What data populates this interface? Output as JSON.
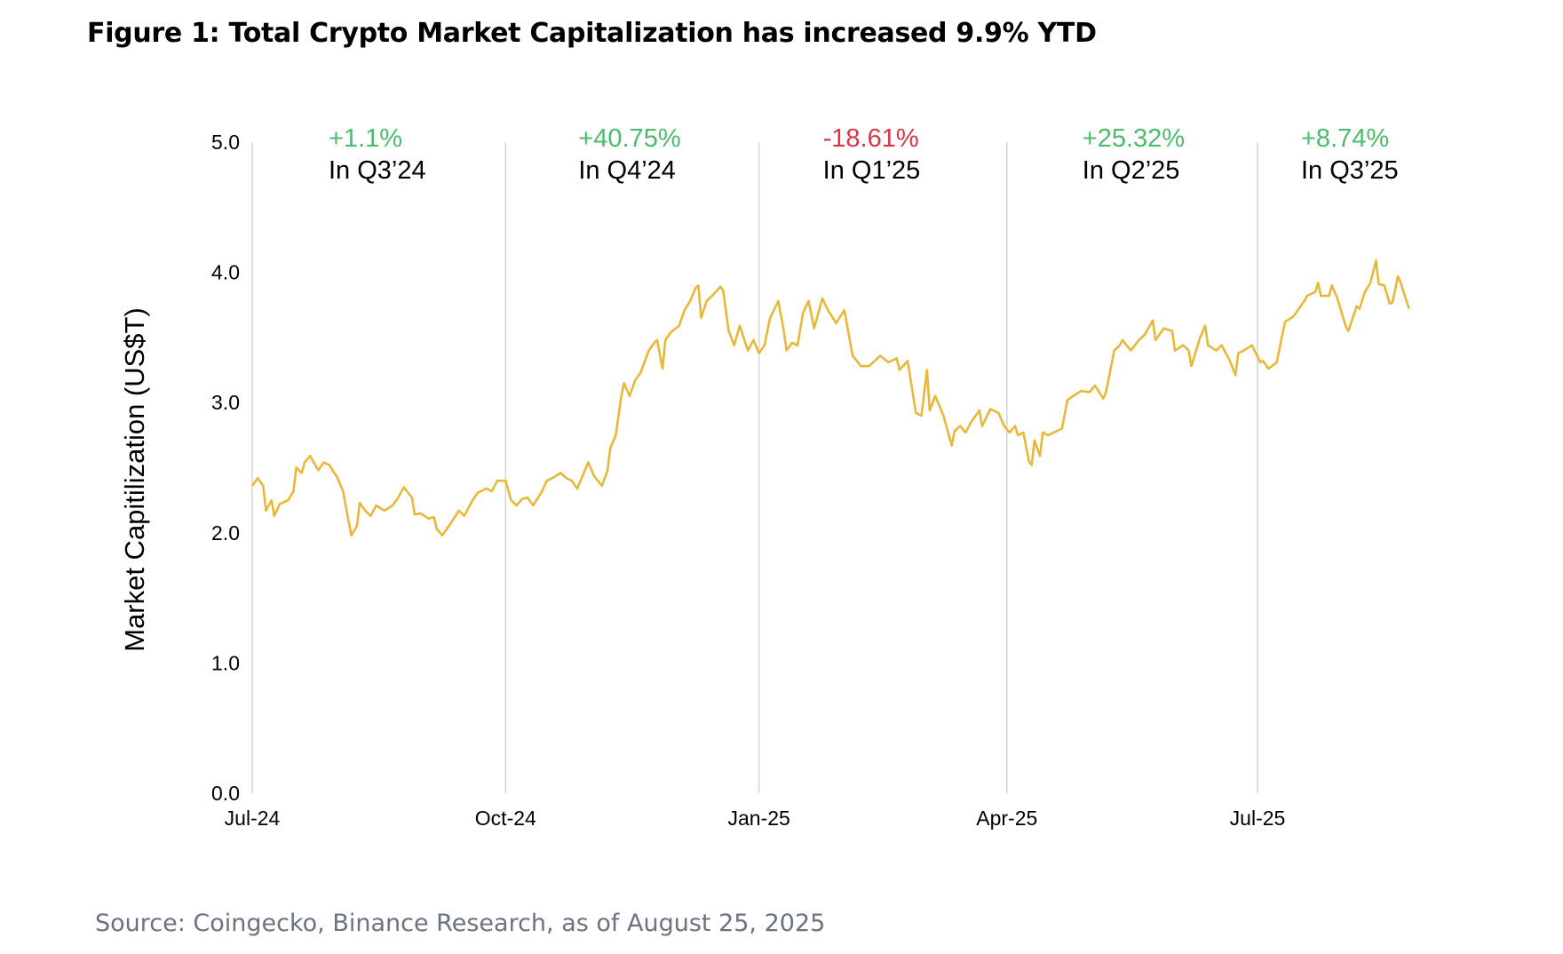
{
  "title": "Figure 1: Total Crypto Market Capitalization has increased 9.9% YTD",
  "source": "Source: Coingecko, Binance Research, as of August 25, 2025",
  "chart_data": {
    "type": "line",
    "title": "Figure 1: Total Crypto Market Capitalization has increased 9.9% YTD",
    "xlabel": "",
    "ylabel": "Market Capitilization (US$T)",
    "ylim": [
      0,
      5
    ],
    "xlim": [
      "2024-07-01",
      "2025-08-25"
    ],
    "yticks": [
      "0.0",
      "1.0",
      "2.0",
      "3.0",
      "4.0",
      "5.0"
    ],
    "xticks": [
      {
        "date": "2024-07-01",
        "label": "Jul-24"
      },
      {
        "date": "2024-10-01",
        "label": "Oct-24"
      },
      {
        "date": "2025-01-01",
        "label": "Jan-25"
      },
      {
        "date": "2025-04-01",
        "label": "Apr-25"
      },
      {
        "date": "2025-07-01",
        "label": "Jul-25"
      }
    ],
    "grid": "vertical lines at quarter starts",
    "line_color": "#e8b83a",
    "annotations": [
      {
        "change": "+1.1%",
        "period": "In Q3’24",
        "color": "#4cbb6c",
        "quarter_start": "2024-07-01"
      },
      {
        "change": "+40.75%",
        "period": "In Q4’24",
        "color": "#4cbb6c",
        "quarter_start": "2024-10-01"
      },
      {
        "change": "-18.61%",
        "period": "In Q1’25",
        "color": "#d9364a",
        "quarter_start": "2025-01-01"
      },
      {
        "change": "+25.32%",
        "period": "In Q2’25",
        "color": "#4cbb6c",
        "quarter_start": "2025-04-01"
      },
      {
        "change": "+8.74%",
        "period": "In Q3’25",
        "color": "#4cbb6c",
        "quarter_start": "2025-07-01"
      }
    ],
    "series": [
      {
        "points": [
          [
            "2024-07-01",
            2.36
          ],
          [
            "2024-07-03",
            2.42
          ],
          [
            "2024-07-05",
            2.36
          ],
          [
            "2024-07-06",
            2.17
          ],
          [
            "2024-07-08",
            2.25
          ],
          [
            "2024-07-09",
            2.13
          ],
          [
            "2024-07-11",
            2.22
          ],
          [
            "2024-07-14",
            2.25
          ],
          [
            "2024-07-16",
            2.32
          ],
          [
            "2024-07-17",
            2.5
          ],
          [
            "2024-07-19",
            2.46
          ],
          [
            "2024-07-20",
            2.54
          ],
          [
            "2024-07-22",
            2.59
          ],
          [
            "2024-07-25",
            2.48
          ],
          [
            "2024-07-27",
            2.54
          ],
          [
            "2024-07-29",
            2.52
          ],
          [
            "2024-08-01",
            2.42
          ],
          [
            "2024-08-03",
            2.32
          ],
          [
            "2024-08-05",
            2.09
          ],
          [
            "2024-08-06",
            1.98
          ],
          [
            "2024-08-08",
            2.05
          ],
          [
            "2024-08-09",
            2.23
          ],
          [
            "2024-08-11",
            2.17
          ],
          [
            "2024-08-13",
            2.13
          ],
          [
            "2024-08-15",
            2.21
          ],
          [
            "2024-08-18",
            2.17
          ],
          [
            "2024-08-21",
            2.21
          ],
          [
            "2024-08-23",
            2.27
          ],
          [
            "2024-08-25",
            2.35
          ],
          [
            "2024-08-28",
            2.27
          ],
          [
            "2024-08-29",
            2.14
          ],
          [
            "2024-08-31",
            2.15
          ],
          [
            "2024-09-03",
            2.11
          ],
          [
            "2024-09-05",
            2.12
          ],
          [
            "2024-09-06",
            2.03
          ],
          [
            "2024-09-08",
            1.98
          ],
          [
            "2024-09-11",
            2.07
          ],
          [
            "2024-09-14",
            2.17
          ],
          [
            "2024-09-16",
            2.13
          ],
          [
            "2024-09-19",
            2.25
          ],
          [
            "2024-09-21",
            2.31
          ],
          [
            "2024-09-24",
            2.34
          ],
          [
            "2024-09-26",
            2.32
          ],
          [
            "2024-09-28",
            2.4
          ],
          [
            "2024-10-01",
            2.4
          ],
          [
            "2024-10-03",
            2.25
          ],
          [
            "2024-10-05",
            2.21
          ],
          [
            "2024-10-07",
            2.26
          ],
          [
            "2024-10-09",
            2.27
          ],
          [
            "2024-10-11",
            2.21
          ],
          [
            "2024-10-14",
            2.31
          ],
          [
            "2024-10-16",
            2.4
          ],
          [
            "2024-10-18",
            2.42
          ],
          [
            "2024-10-21",
            2.46
          ],
          [
            "2024-10-23",
            2.42
          ],
          [
            "2024-10-25",
            2.4
          ],
          [
            "2024-10-27",
            2.34
          ],
          [
            "2024-10-29",
            2.44
          ],
          [
            "2024-10-31",
            2.54
          ],
          [
            "2024-11-02",
            2.44
          ],
          [
            "2024-11-05",
            2.36
          ],
          [
            "2024-11-07",
            2.48
          ],
          [
            "2024-11-08",
            2.65
          ],
          [
            "2024-11-10",
            2.75
          ],
          [
            "2024-11-12",
            3.05
          ],
          [
            "2024-11-13",
            3.15
          ],
          [
            "2024-11-15",
            3.05
          ],
          [
            "2024-11-17",
            3.17
          ],
          [
            "2024-11-19",
            3.23
          ],
          [
            "2024-11-22",
            3.4
          ],
          [
            "2024-11-24",
            3.46
          ],
          [
            "2024-11-25",
            3.48
          ],
          [
            "2024-11-27",
            3.26
          ],
          [
            "2024-11-28",
            3.48
          ],
          [
            "2024-11-30",
            3.54
          ],
          [
            "2024-12-03",
            3.59
          ],
          [
            "2024-12-05",
            3.71
          ],
          [
            "2024-12-07",
            3.78
          ],
          [
            "2024-12-09",
            3.88
          ],
          [
            "2024-12-10",
            3.9
          ],
          [
            "2024-12-11",
            3.65
          ],
          [
            "2024-12-13",
            3.78
          ],
          [
            "2024-12-15",
            3.82
          ],
          [
            "2024-12-18",
            3.89
          ],
          [
            "2024-12-19",
            3.86
          ],
          [
            "2024-12-21",
            3.55
          ],
          [
            "2024-12-23",
            3.44
          ],
          [
            "2024-12-25",
            3.59
          ],
          [
            "2024-12-28",
            3.4
          ],
          [
            "2024-12-30",
            3.48
          ],
          [
            "2025-01-01",
            3.38
          ],
          [
            "2025-01-03",
            3.44
          ],
          [
            "2025-01-05",
            3.65
          ],
          [
            "2025-01-08",
            3.78
          ],
          [
            "2025-01-10",
            3.55
          ],
          [
            "2025-01-11",
            3.4
          ],
          [
            "2025-01-13",
            3.46
          ],
          [
            "2025-01-15",
            3.44
          ],
          [
            "2025-01-17",
            3.69
          ],
          [
            "2025-01-19",
            3.78
          ],
          [
            "2025-01-21",
            3.57
          ],
          [
            "2025-01-24",
            3.8
          ],
          [
            "2025-01-26",
            3.71
          ],
          [
            "2025-01-29",
            3.61
          ],
          [
            "2025-02-01",
            3.71
          ],
          [
            "2025-02-02",
            3.59
          ],
          [
            "2025-02-04",
            3.36
          ],
          [
            "2025-02-07",
            3.28
          ],
          [
            "2025-02-10",
            3.28
          ],
          [
            "2025-02-12",
            3.32
          ],
          [
            "2025-02-14",
            3.36
          ],
          [
            "2025-02-17",
            3.31
          ],
          [
            "2025-02-20",
            3.34
          ],
          [
            "2025-02-21",
            3.25
          ],
          [
            "2025-02-24",
            3.32
          ],
          [
            "2025-02-26",
            3.05
          ],
          [
            "2025-02-27",
            2.92
          ],
          [
            "2025-03-01",
            2.9
          ],
          [
            "2025-03-03",
            3.25
          ],
          [
            "2025-03-04",
            2.94
          ],
          [
            "2025-03-06",
            3.05
          ],
          [
            "2025-03-09",
            2.9
          ],
          [
            "2025-03-12",
            2.67
          ],
          [
            "2025-03-13",
            2.78
          ],
          [
            "2025-03-15",
            2.82
          ],
          [
            "2025-03-17",
            2.77
          ],
          [
            "2025-03-19",
            2.85
          ],
          [
            "2025-03-22",
            2.94
          ],
          [
            "2025-03-23",
            2.82
          ],
          [
            "2025-03-26",
            2.95
          ],
          [
            "2025-03-29",
            2.92
          ],
          [
            "2025-03-31",
            2.82
          ],
          [
            "2025-04-02",
            2.77
          ],
          [
            "2025-04-04",
            2.82
          ],
          [
            "2025-04-05",
            2.75
          ],
          [
            "2025-04-07",
            2.77
          ],
          [
            "2025-04-09",
            2.55
          ],
          [
            "2025-04-10",
            2.52
          ],
          [
            "2025-04-11",
            2.71
          ],
          [
            "2025-04-13",
            2.59
          ],
          [
            "2025-04-14",
            2.77
          ],
          [
            "2025-04-16",
            2.75
          ],
          [
            "2025-04-18",
            2.77
          ],
          [
            "2025-04-21",
            2.8
          ],
          [
            "2025-04-23",
            3.02
          ],
          [
            "2025-04-25",
            3.05
          ],
          [
            "2025-04-28",
            3.09
          ],
          [
            "2025-05-01",
            3.08
          ],
          [
            "2025-05-03",
            3.13
          ],
          [
            "2025-05-06",
            3.03
          ],
          [
            "2025-05-07",
            3.08
          ],
          [
            "2025-05-10",
            3.4
          ],
          [
            "2025-05-12",
            3.44
          ],
          [
            "2025-05-13",
            3.48
          ],
          [
            "2025-05-16",
            3.4
          ],
          [
            "2025-05-19",
            3.48
          ],
          [
            "2025-05-21",
            3.52
          ],
          [
            "2025-05-24",
            3.63
          ],
          [
            "2025-05-25",
            3.48
          ],
          [
            "2025-05-28",
            3.57
          ],
          [
            "2025-05-31",
            3.55
          ],
          [
            "2025-06-01",
            3.4
          ],
          [
            "2025-06-04",
            3.44
          ],
          [
            "2025-06-06",
            3.4
          ],
          [
            "2025-06-07",
            3.28
          ],
          [
            "2025-06-10",
            3.49
          ],
          [
            "2025-06-12",
            3.59
          ],
          [
            "2025-06-13",
            3.44
          ],
          [
            "2025-06-16",
            3.4
          ],
          [
            "2025-06-18",
            3.44
          ],
          [
            "2025-06-21",
            3.32
          ],
          [
            "2025-06-23",
            3.21
          ],
          [
            "2025-06-24",
            3.38
          ],
          [
            "2025-06-26",
            3.4
          ],
          [
            "2025-06-29",
            3.44
          ],
          [
            "2025-07-02",
            3.31
          ],
          [
            "2025-07-03",
            3.32
          ],
          [
            "2025-07-05",
            3.26
          ],
          [
            "2025-07-08",
            3.31
          ],
          [
            "2025-07-10",
            3.52
          ],
          [
            "2025-07-11",
            3.62
          ],
          [
            "2025-07-14",
            3.66
          ],
          [
            "2025-07-18",
            3.78
          ],
          [
            "2025-07-19",
            3.82
          ],
          [
            "2025-07-22",
            3.85
          ],
          [
            "2025-07-23",
            3.92
          ],
          [
            "2025-07-24",
            3.82
          ],
          [
            "2025-07-27",
            3.82
          ],
          [
            "2025-07-28",
            3.9
          ],
          [
            "2025-07-30",
            3.8
          ],
          [
            "2025-08-02",
            3.59
          ],
          [
            "2025-08-03",
            3.55
          ],
          [
            "2025-08-06",
            3.74
          ],
          [
            "2025-08-07",
            3.72
          ],
          [
            "2025-08-09",
            3.85
          ],
          [
            "2025-08-11",
            3.92
          ],
          [
            "2025-08-13",
            4.09
          ],
          [
            "2025-08-14",
            3.91
          ],
          [
            "2025-08-16",
            3.9
          ],
          [
            "2025-08-18",
            3.76
          ],
          [
            "2025-08-19",
            3.77
          ],
          [
            "2025-08-21",
            3.97
          ],
          [
            "2025-08-22",
            3.92
          ],
          [
            "2025-08-23",
            3.85
          ],
          [
            "2025-08-25",
            3.72
          ]
        ]
      }
    ]
  }
}
